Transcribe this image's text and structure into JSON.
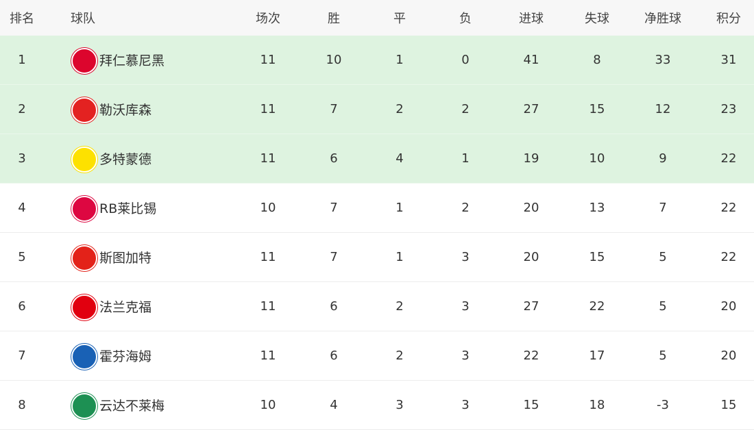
{
  "headers": [
    "排名",
    "球队",
    "场次",
    "胜",
    "平",
    "负",
    "进球",
    "失球",
    "净胜球",
    "积分"
  ],
  "highlight_color": "#def3e0",
  "rows": [
    {
      "rank": "1",
      "team": "拜仁慕尼黑",
      "icon": "bayern-logo-icon",
      "color": "#dc052d",
      "p": "11",
      "w": "10",
      "d": "1",
      "l": "0",
      "gf": "41",
      "ga": "8",
      "gd": "33",
      "pts": "31",
      "top": true
    },
    {
      "rank": "2",
      "team": "勒沃库森",
      "icon": "leverkusen-logo-icon",
      "color": "#e32221",
      "p": "11",
      "w": "7",
      "d": "2",
      "l": "2",
      "gf": "27",
      "ga": "15",
      "gd": "12",
      "pts": "23",
      "top": true
    },
    {
      "rank": "3",
      "team": "多特蒙德",
      "icon": "dortmund-logo-icon",
      "color": "#fde100",
      "p": "11",
      "w": "6",
      "d": "4",
      "l": "1",
      "gf": "19",
      "ga": "10",
      "gd": "9",
      "pts": "22",
      "top": true
    },
    {
      "rank": "4",
      "team": "RB莱比锡",
      "icon": "leipzig-logo-icon",
      "color": "#dd0741",
      "p": "10",
      "w": "7",
      "d": "1",
      "l": "2",
      "gf": "20",
      "ga": "13",
      "gd": "7",
      "pts": "22",
      "top": false
    },
    {
      "rank": "5",
      "team": "斯图加特",
      "icon": "stuttgart-logo-icon",
      "color": "#e32219",
      "p": "11",
      "w": "7",
      "d": "1",
      "l": "3",
      "gf": "20",
      "ga": "15",
      "gd": "5",
      "pts": "22",
      "top": false
    },
    {
      "rank": "6",
      "team": "法兰克福",
      "icon": "frankfurt-logo-icon",
      "color": "#e1000f",
      "p": "11",
      "w": "6",
      "d": "2",
      "l": "3",
      "gf": "27",
      "ga": "22",
      "gd": "5",
      "pts": "20",
      "top": false
    },
    {
      "rank": "7",
      "team": "霍芬海姆",
      "icon": "hoffenheim-logo-icon",
      "color": "#1961b5",
      "p": "11",
      "w": "6",
      "d": "2",
      "l": "3",
      "gf": "22",
      "ga": "17",
      "gd": "5",
      "pts": "20",
      "top": false
    },
    {
      "rank": "8",
      "team": "云达不莱梅",
      "icon": "bremen-logo-icon",
      "color": "#1d9053",
      "p": "10",
      "w": "4",
      "d": "3",
      "l": "3",
      "gf": "15",
      "ga": "18",
      "gd": "-3",
      "pts": "15",
      "top": false
    }
  ]
}
